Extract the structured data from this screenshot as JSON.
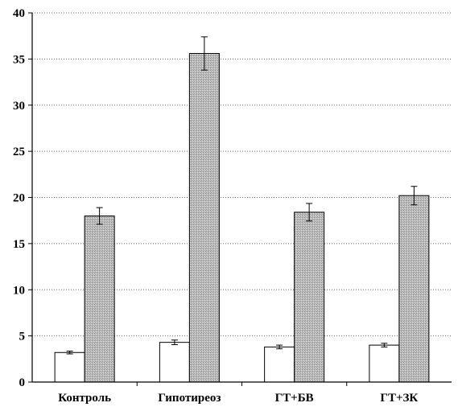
{
  "chart_data": {
    "type": "bar",
    "categories": [
      "Контроль",
      "Гипотиреоз",
      "ГТ+БВ",
      "ГТ+ЗК"
    ],
    "series": [
      {
        "color": "#ffffff",
        "pattern": "none",
        "values": [
          3.2,
          4.3,
          3.8,
          4.0
        ],
        "errors": [
          0.15,
          0.25,
          0.2,
          0.2
        ]
      },
      {
        "color": "#b8b8b8",
        "pattern": "fine-dotted-gray",
        "values": [
          18.0,
          35.6,
          18.4,
          20.2
        ],
        "errors": [
          0.9,
          1.8,
          0.95,
          1.0
        ]
      }
    ],
    "ylim": [
      0,
      40
    ],
    "yticks": [
      0,
      5,
      10,
      15,
      20,
      25,
      30,
      35,
      40
    ],
    "grid": "horizontal-dotted",
    "xlabel": "",
    "ylabel": "",
    "title": ""
  }
}
